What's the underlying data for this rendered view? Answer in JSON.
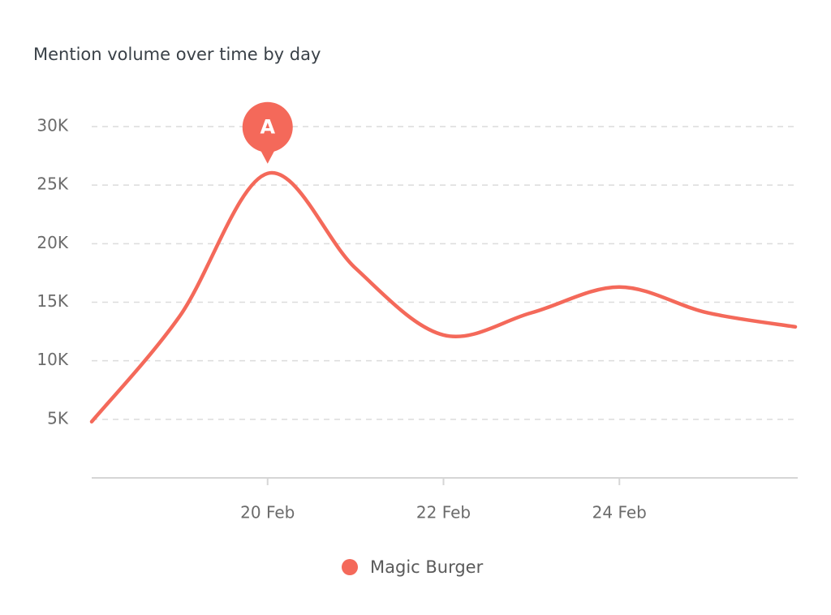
{
  "chart_data": {
    "type": "line",
    "title": "Mention volume over time by day",
    "x": [
      18,
      19,
      20,
      21,
      22,
      23,
      24,
      25,
      26
    ],
    "xlim": [
      18,
      26
    ],
    "xticks": [
      {
        "value": 20,
        "label": "20 Feb"
      },
      {
        "value": 22,
        "label": "22 Feb"
      },
      {
        "value": 24,
        "label": "24 Feb"
      }
    ],
    "series": [
      {
        "name": "Magic Burger",
        "color": "#f4695a",
        "values": [
          4800,
          13800,
          26000,
          17900,
          12200,
          14100,
          16300,
          14100,
          12900
        ]
      }
    ],
    "ylim": [
      0,
      30000
    ],
    "yticks": [
      {
        "value": 5000,
        "label": "5K"
      },
      {
        "value": 10000,
        "label": "10K"
      },
      {
        "value": 15000,
        "label": "15K"
      },
      {
        "value": 20000,
        "label": "20K"
      },
      {
        "value": 25000,
        "label": "25K"
      },
      {
        "value": 30000,
        "label": "30K"
      }
    ],
    "grid": true,
    "legend": "bottom",
    "annotations": [
      {
        "label": "A",
        "x": 20,
        "y": 26000
      }
    ]
  }
}
